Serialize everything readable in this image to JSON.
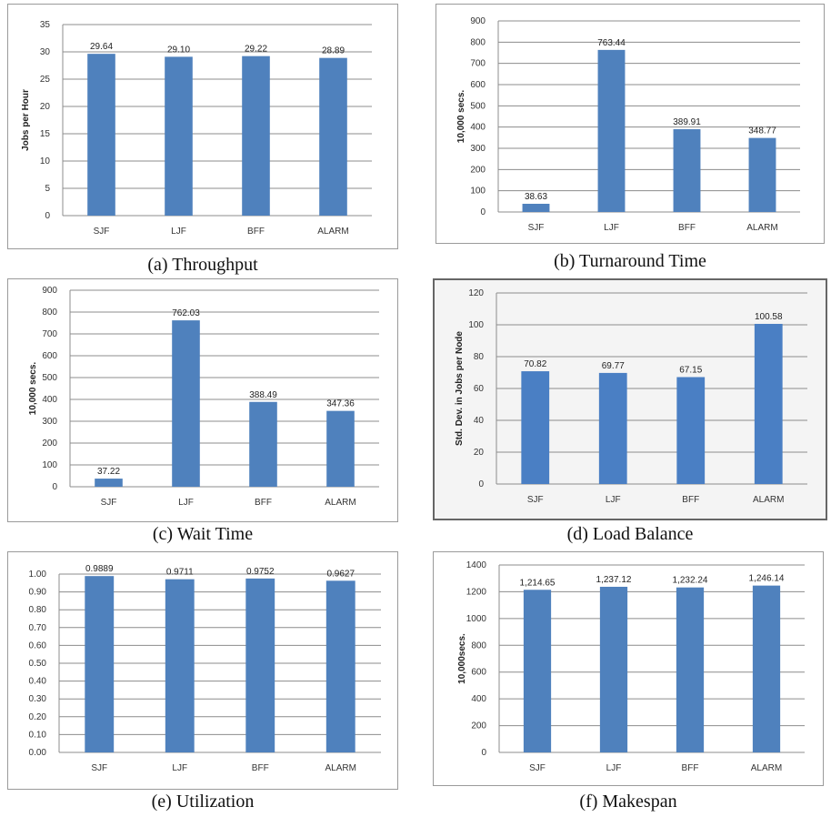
{
  "chart_data": [
    {
      "id": "a",
      "type": "bar",
      "caption": "(a) Throughput",
      "categories": [
        "SJF",
        "LJF",
        "BFF",
        "ALARM"
      ],
      "values": [
        29.64,
        29.1,
        29.22,
        28.89
      ],
      "data_labels": [
        "29.64",
        "29.10",
        "29.22",
        "28.89"
      ],
      "ylabel": "Jobs per Hour",
      "ylim": [
        0,
        35
      ],
      "yticks": [
        0,
        5,
        10,
        15,
        20,
        25,
        30,
        35
      ],
      "ytick_labels": [
        "0",
        "5",
        "10",
        "15",
        "20",
        "25",
        "30",
        "35"
      ],
      "bar_color": "#4f81bd",
      "grid": true
    },
    {
      "id": "b",
      "type": "bar",
      "caption": "(b) Turnaround Time",
      "categories": [
        "SJF",
        "LJF",
        "BFF",
        "ALARM"
      ],
      "values": [
        38.63,
        763.44,
        389.91,
        348.77
      ],
      "data_labels": [
        "38.63",
        "763.44",
        "389.91",
        "348.77"
      ],
      "ylabel": "10,000 secs.",
      "ylim": [
        0,
        900
      ],
      "yticks": [
        0,
        100,
        200,
        300,
        400,
        500,
        600,
        700,
        800,
        900
      ],
      "ytick_labels": [
        "0",
        "100",
        "200",
        "300",
        "400",
        "500",
        "600",
        "700",
        "800",
        "900"
      ],
      "bar_color": "#4f81bd",
      "grid": true
    },
    {
      "id": "c",
      "type": "bar",
      "caption": "(c) Wait Time",
      "categories": [
        "SJF",
        "LJF",
        "BFF",
        "ALARM"
      ],
      "values": [
        37.22,
        762.03,
        388.49,
        347.36
      ],
      "data_labels": [
        "37.22",
        "762.03",
        "388.49",
        "347.36"
      ],
      "ylabel": "10,000 secs.",
      "ylim": [
        0,
        900
      ],
      "yticks": [
        0,
        100,
        200,
        300,
        400,
        500,
        600,
        700,
        800,
        900
      ],
      "ytick_labels": [
        "0",
        "100",
        "200",
        "300",
        "400",
        "500",
        "600",
        "700",
        "800",
        "900"
      ],
      "bar_color": "#4f81bd",
      "grid": true
    },
    {
      "id": "d",
      "type": "bar",
      "caption": "(d) Load Balance",
      "categories": [
        "SJF",
        "LJF",
        "BFF",
        "ALARM"
      ],
      "values": [
        70.82,
        69.77,
        67.15,
        100.58
      ],
      "data_labels": [
        "70.82",
        "69.77",
        "67.15",
        "100.58"
      ],
      "ylabel": "Std. Dev. in Jobs per Node",
      "ylim": [
        0,
        120
      ],
      "yticks": [
        0,
        20,
        40,
        60,
        80,
        100,
        120
      ],
      "ytick_labels": [
        "0",
        "20",
        "40",
        "60",
        "80",
        "100",
        "120"
      ],
      "bar_color": "#4a7fc4",
      "grid": true
    },
    {
      "id": "e",
      "type": "bar",
      "caption": "(e) Utilization",
      "categories": [
        "SJF",
        "LJF",
        "BFF",
        "ALARM"
      ],
      "values": [
        0.9889,
        0.9711,
        0.9752,
        0.9627
      ],
      "data_labels": [
        "0.9889",
        "0.9711",
        "0.9752",
        "0.9627"
      ],
      "ylabel": "",
      "ylim": [
        0,
        1.0
      ],
      "yticks": [
        0,
        0.1,
        0.2,
        0.3,
        0.4,
        0.5,
        0.6,
        0.7,
        0.8,
        0.9,
        1.0
      ],
      "ytick_labels": [
        "0.00",
        "0.10",
        "0.20",
        "0.30",
        "0.40",
        "0.50",
        "0.60",
        "0.70",
        "0.80",
        "0.90",
        "1.00"
      ],
      "bar_color": "#4f81bd",
      "grid": true
    },
    {
      "id": "f",
      "type": "bar",
      "caption": "(f) Makespan",
      "categories": [
        "SJF",
        "LJF",
        "BFF",
        "ALARM"
      ],
      "values": [
        1214.65,
        1237.12,
        1232.24,
        1246.14
      ],
      "data_labels": [
        "1,214.65",
        "1,237.12",
        "1,232.24",
        "1,246.14"
      ],
      "ylabel": "10,000secs.",
      "ylim": [
        0,
        1400
      ],
      "yticks": [
        0,
        200,
        400,
        600,
        800,
        1000,
        1200,
        1400
      ],
      "ytick_labels": [
        "0",
        "200",
        "400",
        "600",
        "800",
        "1000",
        "1200",
        "1400"
      ],
      "bar_color": "#4f81bd",
      "grid": true
    }
  ]
}
